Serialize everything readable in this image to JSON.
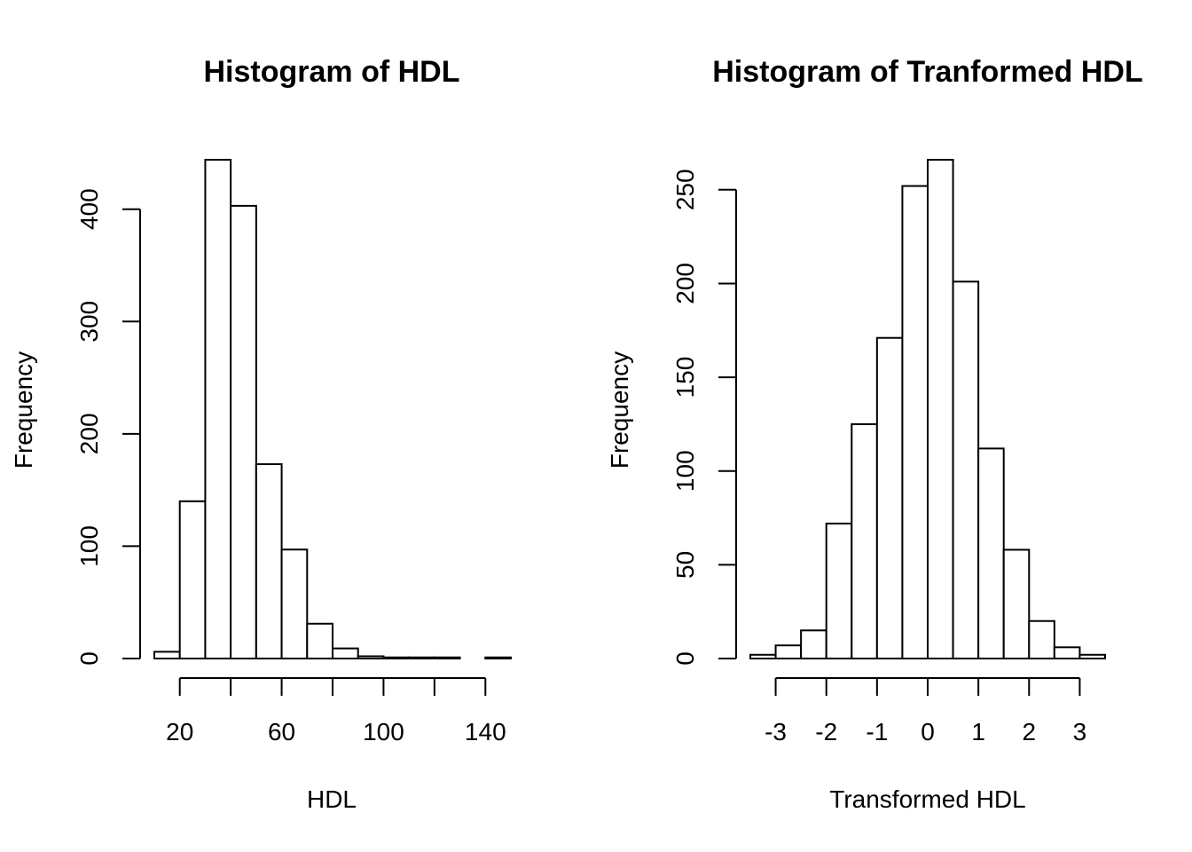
{
  "chart_data": [
    {
      "type": "bar",
      "title": "Histogram of HDL",
      "xlabel": "HDL",
      "ylabel": "Frequency",
      "bins": [
        [
          10,
          20
        ],
        [
          20,
          30
        ],
        [
          30,
          40
        ],
        [
          40,
          50
        ],
        [
          50,
          60
        ],
        [
          60,
          70
        ],
        [
          70,
          80
        ],
        [
          80,
          90
        ],
        [
          90,
          100
        ],
        [
          100,
          110
        ],
        [
          110,
          120
        ],
        [
          120,
          130
        ],
        [
          130,
          140
        ],
        [
          140,
          150
        ]
      ],
      "values": [
        6,
        140,
        444,
        403,
        173,
        97,
        31,
        9,
        2,
        1,
        1,
        1,
        0,
        1
      ],
      "xlim": [
        10,
        150
      ],
      "ylim": [
        0,
        444
      ],
      "xticks": [
        20,
        40,
        60,
        80,
        100,
        120,
        140
      ],
      "xtick_labels": [
        "20",
        "",
        "60",
        "",
        "100",
        "",
        "140"
      ],
      "yticks": [
        0,
        100,
        200,
        300,
        400
      ],
      "ytick_labels": [
        "0",
        "100",
        "200",
        "300",
        "400"
      ],
      "grid": false
    },
    {
      "type": "bar",
      "title": "Histogram of Tranformed HDL",
      "xlabel": "Transformed HDL",
      "ylabel": "Frequency",
      "bins": [
        [
          -3.5,
          -3.0
        ],
        [
          -3.0,
          -2.5
        ],
        [
          -2.5,
          -2.0
        ],
        [
          -2.0,
          -1.5
        ],
        [
          -1.5,
          -1.0
        ],
        [
          -1.0,
          -0.5
        ],
        [
          -0.5,
          0.0
        ],
        [
          0.0,
          0.5
        ],
        [
          0.5,
          1.0
        ],
        [
          1.0,
          1.5
        ],
        [
          1.5,
          2.0
        ],
        [
          2.0,
          2.5
        ],
        [
          2.5,
          3.0
        ],
        [
          3.0,
          3.5
        ]
      ],
      "values": [
        2,
        7,
        15,
        72,
        125,
        171,
        252,
        266,
        201,
        112,
        58,
        20,
        6,
        2
      ],
      "xlim": [
        -3.5,
        3.5
      ],
      "ylim": [
        0,
        266
      ],
      "xticks": [
        -3,
        -2,
        -1,
        0,
        1,
        2,
        3
      ],
      "xtick_labels": [
        "-3",
        "-2",
        "-1",
        "0",
        "1",
        "2",
        "3"
      ],
      "yticks": [
        0,
        50,
        100,
        150,
        200,
        250
      ],
      "ytick_labels": [
        "0",
        "50",
        "100",
        "150",
        "200",
        "250"
      ],
      "grid": false
    }
  ]
}
